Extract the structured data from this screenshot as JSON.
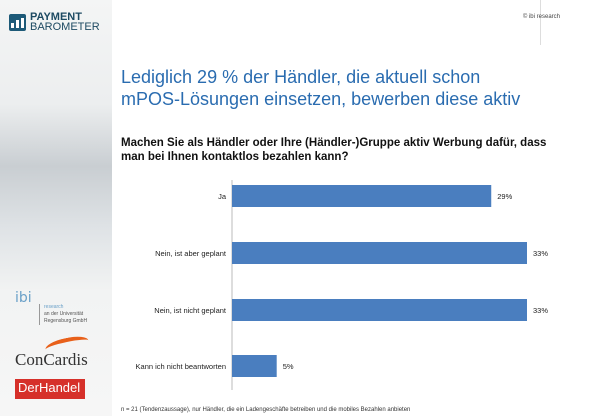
{
  "brand": {
    "line1": "PAYMENT",
    "line2": "BAROMETER"
  },
  "copyright": "© ibi research",
  "sidebar": {
    "ibi_logo": "ibi",
    "ibi_sub1": "research",
    "ibi_sub2": "an der Universität",
    "ibi_sub3": "Regensburg GmbH",
    "concardis": "ConCardis",
    "derhandel": "DerHandel"
  },
  "title": "Lediglich 29 % der Händler, die aktuell schon mPOS-Lösungen einsetzen, bewerben diese aktiv",
  "question": "Machen Sie als Händler oder Ihre (Händler-)Gruppe aktiv Werbung dafür, dass man bei Ihnen kontaktlos bezahlen kann?",
  "footer": "n = 21 (Tendenzaussage), nur Händler, die ein Ladengeschäfte betreiben und die mobiles Bezahlen anbieten",
  "chart_data": {
    "type": "bar",
    "orientation": "horizontal",
    "categories": [
      "Ja",
      "Nein, ist aber geplant",
      "Nein, ist nicht geplant",
      "Kann ich nicht beantworten"
    ],
    "values": [
      29,
      33,
      33,
      5
    ],
    "data_labels": [
      "29%",
      "33%",
      "33%",
      "5%"
    ],
    "xlim": [
      0,
      33
    ],
    "color": "#4a7ebf",
    "grid": false
  }
}
